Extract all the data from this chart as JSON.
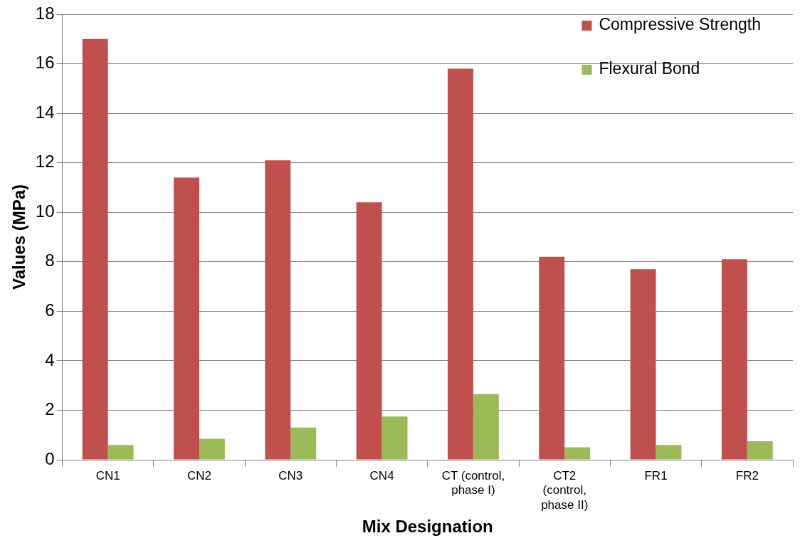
{
  "chart_data": {
    "type": "bar",
    "xlabel": "Mix Designation",
    "ylabel": "Values (MPa)",
    "categories": [
      "CN1",
      "CN2",
      "CN3",
      "CN4",
      "CT (control, phase I)",
      "CT2 (control, phase II)",
      "FR1",
      "FR2"
    ],
    "series": [
      {
        "name": "Compressive Strength",
        "color": "#c0504d",
        "values": [
          17.0,
          11.4,
          12.1,
          10.4,
          15.8,
          8.2,
          7.7,
          8.1
        ]
      },
      {
        "name": "Flexural Bond",
        "color": "#9bbb59",
        "values": [
          0.6,
          0.85,
          1.3,
          1.75,
          2.65,
          0.5,
          0.6,
          0.75
        ]
      }
    ],
    "ylim": [
      0,
      18
    ],
    "yticks": [
      0,
      2,
      4,
      6,
      8,
      10,
      12,
      14,
      16,
      18
    ],
    "grid": "y",
    "legend": "top right"
  }
}
